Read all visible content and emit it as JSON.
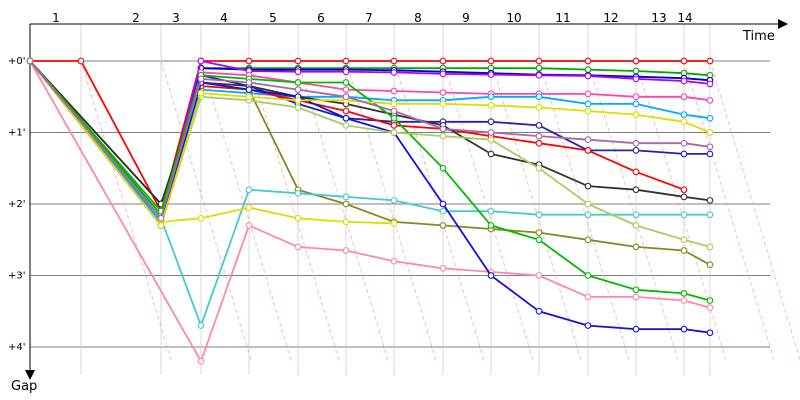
{
  "chart_data": {
    "type": "line",
    "x_axis_title": "Time",
    "y_axis_title": "Gap",
    "laps": [
      1,
      2,
      3,
      4,
      5,
      6,
      7,
      8,
      9,
      10,
      11,
      12,
      13,
      14
    ],
    "lap_labels": [
      "1",
      "2",
      "3",
      "4",
      "5",
      "6",
      "7",
      "8",
      "9",
      "10",
      "11",
      "12",
      "13",
      "14"
    ],
    "gap_ticks": [
      0,
      1,
      2,
      3,
      4
    ],
    "gap_tick_labels": [
      "+0'",
      "+1'",
      "+2'",
      "+3'",
      "+4'"
    ],
    "ylim": [
      -0.35,
      4.4
    ],
    "grid": true,
    "series": [
      {
        "color": "#ff0000",
        "x": [
          0,
          1,
          2,
          3,
          4,
          5,
          6,
          7,
          8,
          9,
          10,
          11,
          12,
          13,
          14
        ],
        "y": [
          0.0,
          0.0,
          2.1,
          0.0,
          0.0,
          0.0,
          0.0,
          0.0,
          0.0,
          0.0,
          0.0,
          0.0,
          0.0,
          0.0,
          0.0
        ]
      },
      {
        "color": "#00aa00",
        "x": [
          0,
          2,
          3,
          4,
          5,
          6,
          7,
          8,
          9,
          10,
          11,
          12,
          13,
          14
        ],
        "y": [
          0.0,
          2.15,
          0.1,
          0.1,
          0.1,
          0.1,
          0.1,
          0.1,
          0.1,
          0.1,
          0.12,
          0.14,
          0.17,
          0.2
        ]
      },
      {
        "color": "#0000cc",
        "x": [
          0,
          2,
          3,
          4,
          5,
          6,
          7,
          8,
          9,
          10,
          11,
          12,
          13,
          14
        ],
        "y": [
          0.0,
          2.2,
          0.1,
          0.12,
          0.12,
          0.12,
          0.13,
          0.15,
          0.17,
          0.19,
          0.2,
          0.22,
          0.24,
          0.27
        ]
      },
      {
        "color": "#aa00ff",
        "x": [
          0,
          2,
          3,
          4,
          5,
          6,
          7,
          8,
          9,
          10,
          11,
          12,
          13,
          14
        ],
        "y": [
          0.0,
          2.25,
          0.0,
          0.14,
          0.15,
          0.15,
          0.16,
          0.18,
          0.19,
          0.2,
          0.21,
          0.25,
          0.28,
          0.32
        ]
      },
      {
        "color": "#ff44aa",
        "x": [
          0,
          2,
          3,
          4,
          5,
          6,
          7,
          8,
          9,
          10,
          11,
          12,
          13,
          14
        ],
        "y": [
          0.0,
          2.2,
          0.16,
          0.2,
          0.3,
          0.4,
          0.42,
          0.44,
          0.46,
          0.46,
          0.46,
          0.5,
          0.5,
          0.55
        ]
      },
      {
        "color": "#00aaff",
        "x": [
          0,
          2,
          3,
          4,
          5,
          6,
          7,
          8,
          9,
          10,
          11,
          12,
          13,
          14
        ],
        "y": [
          0.0,
          2.25,
          0.4,
          0.45,
          0.5,
          0.5,
          0.55,
          0.55,
          0.5,
          0.5,
          0.6,
          0.6,
          0.75,
          0.8
        ]
      },
      {
        "color": "#2222aa",
        "x": [
          0,
          2,
          3,
          4,
          5,
          6,
          7,
          8,
          9,
          10,
          11,
          12,
          13,
          14
        ],
        "y": [
          0.0,
          2.3,
          0.2,
          0.35,
          0.6,
          0.8,
          0.85,
          0.85,
          0.85,
          0.9,
          1.25,
          1.25,
          1.3,
          1.3
        ]
      },
      {
        "color": "#ff0000",
        "x": [
          0,
          2,
          3,
          4,
          5,
          6,
          7,
          8,
          9,
          10,
          11,
          12,
          13
        ],
        "y": [
          0.0,
          2.0,
          0.35,
          0.4,
          0.55,
          0.7,
          0.9,
          0.95,
          1.05,
          1.15,
          1.25,
          1.55,
          1.8
        ]
      },
      {
        "color": "#333333",
        "x": [
          0,
          2,
          3,
          4,
          5,
          6,
          7,
          8,
          9,
          10,
          11,
          12,
          13,
          14
        ],
        "y": [
          0.0,
          2.0,
          0.3,
          0.35,
          0.5,
          0.6,
          0.75,
          0.9,
          1.3,
          1.45,
          1.75,
          1.8,
          1.9,
          1.95
        ]
      },
      {
        "color": "#888822",
        "x": [
          0,
          2,
          3,
          4,
          5,
          6,
          7,
          8,
          9,
          10,
          11,
          12,
          13,
          14
        ],
        "y": [
          0.0,
          2.2,
          0.3,
          0.4,
          1.8,
          2.0,
          2.25,
          2.3,
          2.35,
          2.4,
          2.5,
          2.6,
          2.65,
          2.85
        ]
      },
      {
        "color": "#44cccc",
        "x": [
          0,
          2,
          3,
          4,
          5,
          6,
          7,
          8,
          9,
          10,
          11,
          12,
          13,
          14
        ],
        "y": [
          0.0,
          2.2,
          3.7,
          1.8,
          1.85,
          1.9,
          1.95,
          2.1,
          2.1,
          2.15,
          2.15,
          2.15,
          2.15,
          2.15
        ]
      },
      {
        "color": "#dddd00",
        "x": [
          2,
          3,
          4,
          5,
          6,
          7
        ],
        "y": [
          2.25,
          2.2,
          2.05,
          2.2,
          2.25,
          2.27
        ]
      },
      {
        "color": "#ff88aa",
        "x": [
          0,
          3,
          4,
          5,
          6,
          7,
          8,
          9,
          10,
          11,
          12,
          13,
          14
        ],
        "y": [
          0.0,
          4.2,
          2.3,
          2.6,
          2.65,
          2.8,
          2.9,
          2.95,
          3.0,
          3.3,
          3.3,
          3.35,
          3.45
        ]
      },
      {
        "color": "#00bb00",
        "x": [
          0,
          2,
          3,
          4,
          5,
          6,
          7,
          8,
          9,
          10,
          11,
          12,
          13,
          14
        ],
        "y": [
          0.0,
          2.1,
          0.2,
          0.25,
          0.3,
          0.3,
          0.8,
          1.5,
          2.3,
          2.5,
          3.0,
          3.2,
          3.25,
          3.35
        ]
      },
      {
        "color": "#1111dd",
        "x": [
          0,
          2,
          3,
          4,
          5,
          6,
          7,
          8,
          9,
          10,
          11,
          12,
          13,
          14
        ],
        "y": [
          0.0,
          2.3,
          0.3,
          0.4,
          0.5,
          0.8,
          1.0,
          2.0,
          3.0,
          3.5,
          3.7,
          3.75,
          3.75,
          3.8
        ]
      },
      {
        "color": "#aacc66",
        "x": [
          0,
          2,
          3,
          4,
          5,
          6,
          7,
          8,
          9,
          10,
          11,
          12,
          13,
          14
        ],
        "y": [
          0.0,
          2.3,
          0.5,
          0.55,
          0.65,
          0.9,
          1.0,
          1.05,
          1.1,
          1.5,
          2.0,
          2.3,
          2.5,
          2.6
        ]
      },
      {
        "color": "#dddd00",
        "x": [
          0,
          2,
          3,
          4,
          5,
          6,
          7,
          8,
          9,
          10,
          11,
          12,
          13,
          14
        ],
        "y": [
          0.0,
          2.3,
          0.45,
          0.5,
          0.55,
          0.55,
          0.6,
          0.6,
          0.62,
          0.65,
          0.7,
          0.75,
          0.85,
          1.0
        ]
      },
      {
        "color": "#aa66aa",
        "x": [
          0,
          2,
          3,
          4,
          5,
          6,
          7,
          8,
          9,
          10,
          11,
          12,
          13,
          14
        ],
        "y": [
          0.0,
          2.2,
          0.25,
          0.3,
          0.4,
          0.5,
          0.7,
          0.95,
          1.0,
          1.05,
          1.1,
          1.15,
          1.15,
          1.2
        ]
      }
    ]
  }
}
